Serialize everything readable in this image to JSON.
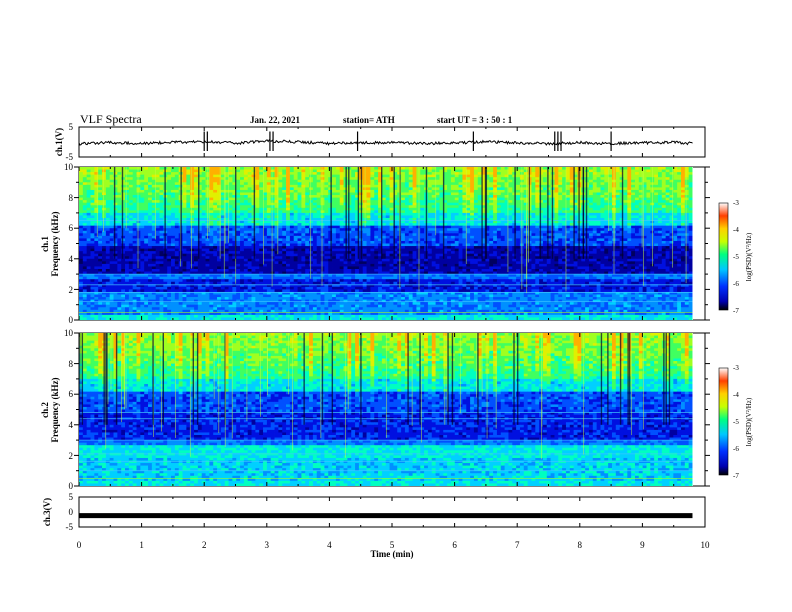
{
  "header": {
    "title": "VLF Spectra",
    "date": "Jan. 22, 2021",
    "station": "station= ATH",
    "start": "start  UT  =   3 : 50 : 1"
  },
  "chart_data": [
    {
      "type": "line",
      "panel": "channel-1-waveform",
      "ylabel": "ch.1(V)",
      "ylim": [
        -5,
        5
      ],
      "y_ticks": [
        "5",
        "-5"
      ],
      "x": [
        0,
        0.5,
        1,
        1.5,
        2,
        2.5,
        3,
        3.5,
        4,
        4.5,
        5,
        5.5,
        6,
        6.5,
        7,
        7.5,
        8,
        8.5,
        9,
        9.5,
        9.8
      ],
      "y": [
        -0.6,
        -0.2,
        -0.5,
        -0.1,
        0.1,
        -0.4,
        0.3,
        0.0,
        -0.5,
        -0.3,
        -0.2,
        -0.5,
        -0.4,
        0.1,
        -0.3,
        -0.6,
        -0.2,
        -0.5,
        -0.3,
        -0.1,
        -0.5
      ]
    },
    {
      "type": "heatmap",
      "panel": "channel-1-spectrogram",
      "ylabel_top": "ch.1",
      "ylabel": "Frequency (kHz)",
      "ylim": [
        0,
        10
      ],
      "y_ticks": [
        "0",
        "2",
        "4",
        "6",
        "8",
        "10"
      ],
      "colorbar": {
        "label": "log(PSD)(V²/Hz)",
        "range": [
          -7,
          -3
        ],
        "ticks": [
          "-3",
          "-4",
          "-5",
          "-6",
          "-7"
        ]
      }
    },
    {
      "type": "heatmap",
      "panel": "channel-2-spectrogram",
      "ylabel_top": "ch.2",
      "ylabel": "Frequency (kHz)",
      "ylim": [
        0,
        10
      ],
      "y_ticks": [
        "0",
        "2",
        "4",
        "6",
        "8",
        "10"
      ],
      "colorbar": {
        "label": "log(PSD)(V²/Hz)",
        "range": [
          -7,
          -3
        ],
        "ticks": [
          "-3",
          "-4",
          "-5",
          "-6",
          "-7"
        ]
      }
    },
    {
      "type": "line",
      "panel": "channel-3-waveform",
      "ylabel": "ch.3(V)",
      "ylim": [
        -5,
        5
      ],
      "y_ticks": [
        "5",
        "0",
        "-5"
      ],
      "x": [
        0,
        9.8
      ],
      "y": [
        -1.2,
        -1.2
      ]
    }
  ],
  "x_axis": {
    "label": "Time (min)",
    "range": [
      0,
      10
    ],
    "ticks": [
      "0",
      "1",
      "2",
      "3",
      "4",
      "5",
      "6",
      "7",
      "8",
      "9",
      "10"
    ]
  }
}
